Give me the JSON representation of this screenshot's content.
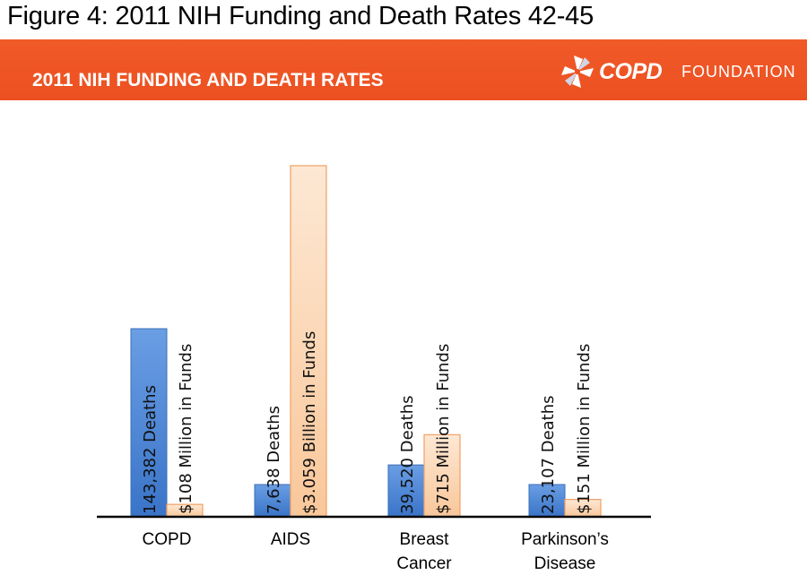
{
  "figure_caption": "Figure 4: 2011 NIH Funding and Death Rates 42-45",
  "banner": {
    "title": "2011 NIH FUNDING AND DEATH RATES",
    "logo_primary": "COPD",
    "logo_secondary": "FOUNDATION"
  },
  "colors": {
    "banner": "#ec5021",
    "deaths_bar": "#4a82d0",
    "funding_bar": "#fbd6b2",
    "funding_border": "#f0a060"
  },
  "chart_data": {
    "type": "bar",
    "categories": [
      [
        "COPD"
      ],
      [
        "AIDS"
      ],
      [
        "Breast",
        "Cancer"
      ],
      [
        "Parkinson’s",
        "Disease"
      ]
    ],
    "series": [
      {
        "key": "deaths",
        "values": [
          143382,
          7638,
          39520,
          23107
        ]
      },
      {
        "key": "funding",
        "values": [
          108,
          3059,
          715,
          151
        ]
      }
    ],
    "data_labels": {
      "deaths": [
        "143,382 Deaths",
        "7,638 Deaths",
        "39,520 Deaths",
        "23,107 Deaths"
      ],
      "funding": [
        "$108 Million  in Funds",
        "$3.059 Billion in Funds",
        "$715 Million in Funds",
        "$151 Million in Funds"
      ]
    },
    "axes": "none",
    "grid": false,
    "legend": "none"
  }
}
